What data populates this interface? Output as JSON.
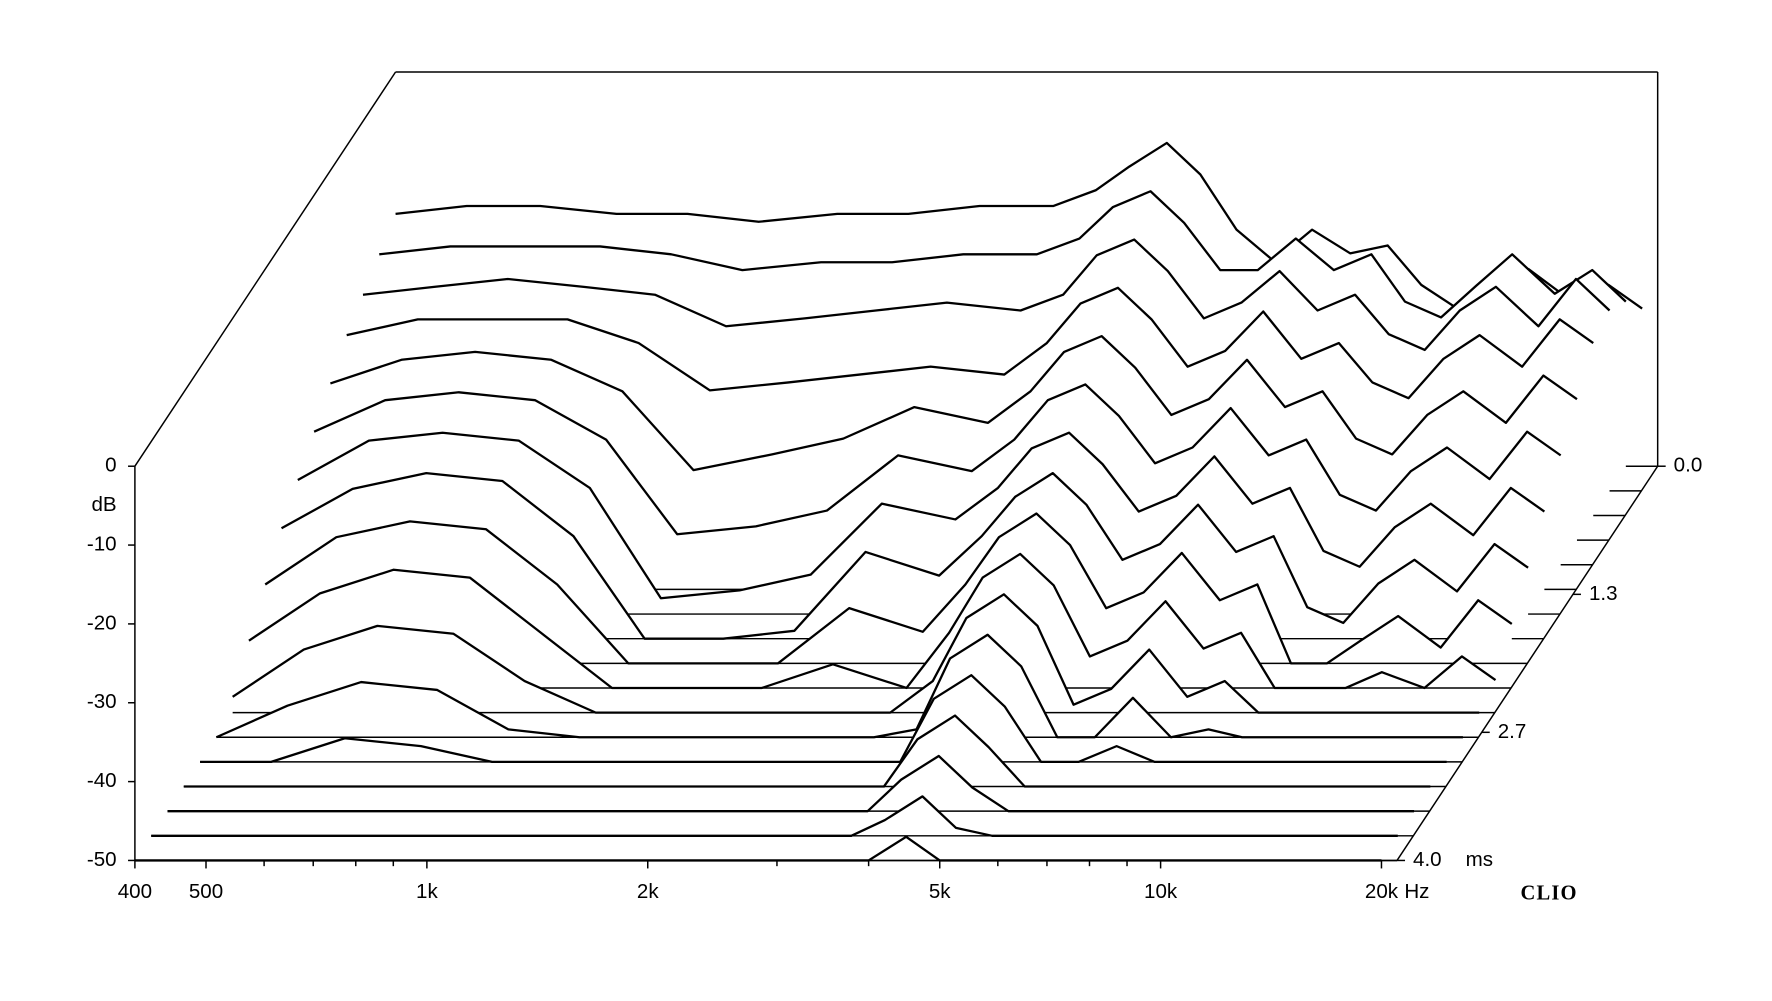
{
  "chart_data": {
    "type": "waterfall",
    "x": [
      400,
      500,
      630,
      800,
      1000,
      1250,
      1600,
      2000,
      2500,
      3150,
      3600,
      4000,
      4500,
      5000,
      5600,
      6300,
      7100,
      8000,
      9000,
      10000,
      11200,
      12500,
      14000,
      16000,
      18000,
      20000
    ],
    "xlim": [
      400,
      21000
    ],
    "xlog": true,
    "xticks": [
      400,
      500,
      {
        "value": 1000,
        "label": "1k"
      },
      {
        "value": 2000,
        "label": "2k"
      },
      {
        "value": 5000,
        "label": "5k"
      },
      {
        "value": 10000,
        "label": "10k"
      },
      {
        "value": 20000,
        "label": "20k"
      }
    ],
    "xminorticks": [
      600,
      700,
      800,
      900,
      3000,
      4000,
      6000,
      7000,
      8000,
      9000
    ],
    "xlabel": "Hz",
    "ylim": [
      -50,
      0
    ],
    "yticks": [
      0,
      -10,
      -20,
      -30,
      -40,
      -50
    ],
    "ylabel": "dB",
    "zlim": [
      0,
      4
    ],
    "zticks": [
      {
        "value": 0,
        "label": "0.0"
      },
      1.3,
      2.7,
      {
        "value": 4,
        "label": "4.0"
      }
    ],
    "zlabel": "ms",
    "color": "#000000",
    "annotation": "CLIO",
    "series": [
      {
        "z": 0,
        "values": [
          -18,
          -17,
          -17,
          -18,
          -18,
          -19,
          -18,
          -18,
          -17,
          -17,
          -15,
          -12,
          -9,
          -13,
          -20,
          -24,
          -20,
          -23,
          -22,
          -27,
          -30,
          -28,
          -25,
          -29,
          -27,
          -30
        ]
      },
      {
        "z": 0.25,
        "values": [
          -20,
          -19,
          -19,
          -19,
          -20,
          -22,
          -21,
          -21,
          -20,
          -20,
          -18,
          -14,
          -12,
          -16,
          -22,
          -22,
          -18,
          -22,
          -20,
          -26,
          -28,
          -24,
          -20,
          -25,
          -22,
          -26
        ]
      },
      {
        "z": 0.5,
        "values": [
          -22,
          -21,
          -20,
          -21,
          -22,
          -26,
          -25,
          -24,
          -23,
          -24,
          -22,
          -17,
          -15,
          -19,
          -25,
          -23,
          -19,
          -24,
          -22,
          -27,
          -29,
          -24,
          -21,
          -26,
          -20,
          -24
        ]
      },
      {
        "z": 0.75,
        "values": [
          -24,
          -22,
          -22,
          -22,
          -25,
          -31,
          -30,
          -29,
          -28,
          -29,
          -25,
          -20,
          -18,
          -22,
          -28,
          -26,
          -21,
          -27,
          -25,
          -30,
          -32,
          -27,
          -24,
          -28,
          -22,
          -25
        ]
      },
      {
        "z": 1,
        "values": [
          -27,
          -24,
          -23,
          -24,
          -28,
          -38,
          -36,
          -34,
          -30,
          -32,
          -28,
          -23,
          -21,
          -25,
          -31,
          -29,
          -24,
          -30,
          -28,
          -34,
          -36,
          -31,
          -28,
          -32,
          -26,
          -29
        ]
      },
      {
        "z": 1.25,
        "values": [
          -30,
          -26,
          -25,
          -26,
          -31,
          -43,
          -42,
          -40,
          -33,
          -35,
          -31,
          -26,
          -24,
          -28,
          -34,
          -32,
          -27,
          -33,
          -31,
          -38,
          -40,
          -35,
          -32,
          -36,
          -30,
          -33
        ]
      },
      {
        "z": 1.5,
        "values": [
          -33,
          -28,
          -27,
          -28,
          -34,
          -48,
          -47,
          -45,
          -36,
          -38,
          -34,
          -29,
          -27,
          -31,
          -37,
          -35,
          -30,
          -36,
          -34,
          -42,
          -44,
          -39,
          -36,
          -40,
          -34,
          -37
        ]
      },
      {
        "z": 1.75,
        "values": [
          -36,
          -31,
          -29,
          -30,
          -37,
          -50,
          -50,
          -49,
          -39,
          -42,
          -37,
          -32,
          -29,
          -33,
          -40,
          -38,
          -33,
          -39,
          -37,
          -46,
          -48,
          -43,
          -40,
          -44,
          -38,
          -41
        ]
      },
      {
        "z": 2,
        "values": [
          -40,
          -34,
          -32,
          -33,
          -40,
          -50,
          -50,
          -50,
          -43,
          -46,
          -40,
          -34,
          -31,
          -35,
          -43,
          -41,
          -36,
          -42,
          -40,
          -50,
          -50,
          -47,
          -44,
          -48,
          -42,
          -45
        ]
      },
      {
        "z": 2.25,
        "values": [
          -44,
          -38,
          -35,
          -36,
          -43,
          -50,
          -50,
          -50,
          -47,
          -50,
          -43,
          -36,
          -33,
          -37,
          -46,
          -44,
          -39,
          -45,
          -43,
          -50,
          -50,
          -50,
          -48,
          -50,
          -46,
          -49
        ]
      },
      {
        "z": 2.5,
        "values": [
          -48,
          -42,
          -39,
          -40,
          -46,
          -50,
          -50,
          -50,
          -50,
          -50,
          -46,
          -38,
          -35,
          -39,
          -49,
          -47,
          -42,
          -48,
          -46,
          -50,
          -50,
          -50,
          -50,
          -50,
          -50,
          -50
        ]
      },
      {
        "z": 2.75,
        "values": [
          -50,
          -46,
          -43,
          -44,
          -49,
          -50,
          -50,
          -50,
          -50,
          -50,
          -49,
          -40,
          -37,
          -41,
          -50,
          -50,
          -45,
          -50,
          -49,
          -50,
          -50,
          -50,
          -50,
          -50,
          -50,
          -50
        ]
      },
      {
        "z": 3,
        "values": [
          -50,
          -50,
          -47,
          -48,
          -50,
          -50,
          -50,
          -50,
          -50,
          -50,
          -50,
          -42,
          -39,
          -43,
          -50,
          -50,
          -48,
          -50,
          -50,
          -50,
          -50,
          -50,
          -50,
          -50,
          -50,
          -50
        ]
      },
      {
        "z": 3.25,
        "values": [
          -50,
          -50,
          -50,
          -50,
          -50,
          -50,
          -50,
          -50,
          -50,
          -50,
          -50,
          -44,
          -41,
          -45,
          -50,
          -50,
          -50,
          -50,
          -50,
          -50,
          -50,
          -50,
          -50,
          -50,
          -50,
          -50
        ]
      },
      {
        "z": 3.5,
        "values": [
          -50,
          -50,
          -50,
          -50,
          -50,
          -50,
          -50,
          -50,
          -50,
          -50,
          -50,
          -46,
          -43,
          -47,
          -50,
          -50,
          -50,
          -50,
          -50,
          -50,
          -50,
          -50,
          -50,
          -50,
          -50,
          -50
        ]
      },
      {
        "z": 3.75,
        "values": [
          -50,
          -50,
          -50,
          -50,
          -50,
          -50,
          -50,
          -50,
          -50,
          -50,
          -50,
          -48,
          -45,
          -49,
          -50,
          -50,
          -50,
          -50,
          -50,
          -50,
          -50,
          -50,
          -50,
          -50,
          -50,
          -50
        ]
      },
      {
        "z": 4,
        "values": [
          -50,
          -50,
          -50,
          -50,
          -50,
          -50,
          -50,
          -50,
          -50,
          -50,
          -50,
          -50,
          -47,
          -50,
          -50,
          -50,
          -50,
          -50,
          -50,
          -50,
          -50,
          -50,
          -50,
          -50,
          -50,
          -50
        ]
      }
    ]
  }
}
